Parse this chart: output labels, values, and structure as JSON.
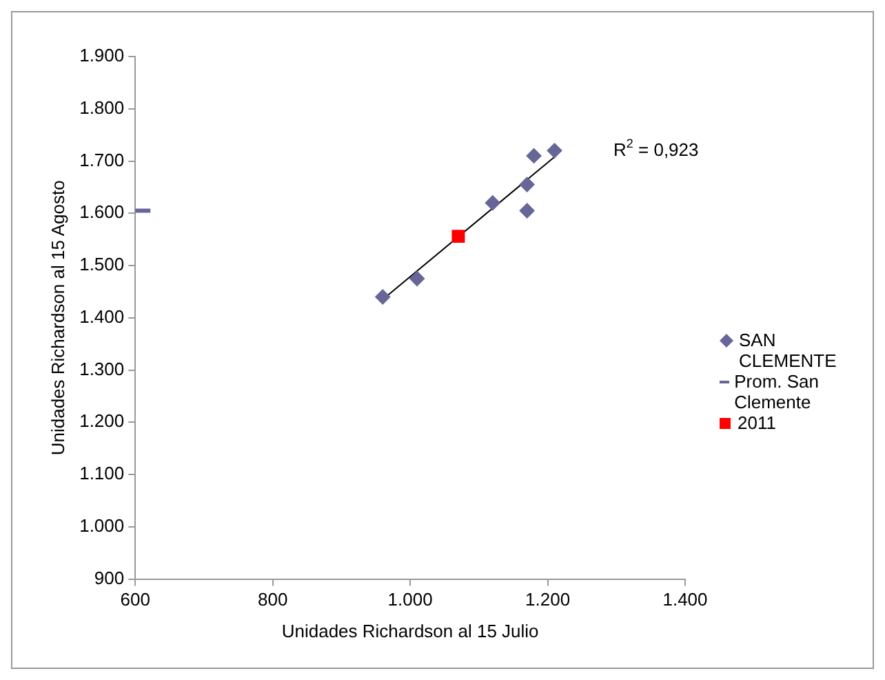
{
  "chart_data": {
    "type": "scatter",
    "xlabel": "Unidades Richardson al 15 Julio",
    "ylabel": "Unidades Richardson al 15 Agosto",
    "xlim": [
      600,
      1400
    ],
    "xticks": [
      600,
      800,
      {
        "value": 1000,
        "label": "1.000"
      },
      {
        "value": 1200,
        "label": "1.200"
      },
      {
        "value": 1400,
        "label": "1.400"
      }
    ],
    "ylim": [
      900,
      1900
    ],
    "yticks": [
      900,
      {
        "value": 1000,
        "label": "1.000"
      },
      {
        "value": 1100,
        "label": "1.100"
      },
      {
        "value": 1200,
        "label": "1.200"
      },
      {
        "value": 1300,
        "label": "1.300"
      },
      {
        "value": 1400,
        "label": "1.400"
      },
      {
        "value": 1500,
        "label": "1.500"
      },
      {
        "value": 1600,
        "label": "1.600"
      },
      {
        "value": 1700,
        "label": "1.700"
      },
      {
        "value": 1800,
        "label": "1.800"
      },
      {
        "value": 1900,
        "label": "1.900"
      }
    ],
    "grid": false,
    "legend": "right",
    "series": [
      {
        "name": "SAN CLEMENTE",
        "color": "#666699",
        "marker": "diamond",
        "x": [
          960,
          1010,
          1120,
          1170,
          1170,
          1180,
          1210
        ],
        "values": [
          1440,
          1475,
          1620,
          1655,
          1605,
          1710,
          1720
        ]
      },
      {
        "name": "Prom. San Clemente",
        "type": "line",
        "color": "#666699",
        "marker": "none",
        "x": [
          600,
          622
        ],
        "values": [
          1605,
          1605
        ]
      },
      {
        "name": "2011",
        "color": "#ff0000",
        "marker": "square",
        "x": [
          1070
        ],
        "values": [
          1556
        ]
      },
      {
        "type": "line",
        "color": "#000000",
        "marker": "none",
        "x": [
          960,
          1210
        ],
        "values": [
          1435,
          1708
        ]
      }
    ],
    "annotations": [
      "R$^{2}$ = 0,923"
    ]
  }
}
